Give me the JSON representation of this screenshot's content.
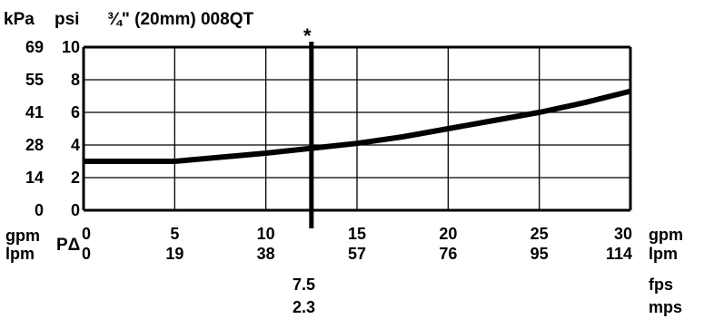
{
  "chart_data": {
    "type": "line",
    "title": "¾\" (20mm) 008QT",
    "x": [
      0,
      2.5,
      5,
      7.5,
      10,
      12.5,
      15,
      17.5,
      20,
      22.5,
      25,
      27.5,
      30
    ],
    "series": [
      {
        "values": [
          3.0,
          3.0,
          3.0,
          3.25,
          3.5,
          3.8,
          4.1,
          4.5,
          5.0,
          5.5,
          6.0,
          6.6,
          7.3
        ]
      }
    ],
    "xlim": [
      0,
      30
    ],
    "ylim": [
      0,
      10
    ],
    "x_ticks": [
      "0",
      "5",
      "10",
      "15",
      "20",
      "25",
      "30"
    ],
    "x_ticks_secondary": [
      "0",
      "19",
      "38",
      "57",
      "76",
      "95",
      "114"
    ],
    "x_unit_primary": "gpm",
    "x_unit_secondary": "lpm",
    "y_ticks_psi": [
      "10",
      "8",
      "6",
      "4",
      "2",
      "0"
    ],
    "y_ticks_kpa": [
      "69",
      "55",
      "41",
      "28",
      "14",
      "0"
    ],
    "y_unit_psi": "psi",
    "y_unit_kpa": "kPa",
    "marker": {
      "x": 12.5,
      "symbol": "*",
      "fps": "7.5",
      "mps": "2.3",
      "fps_unit": "fps",
      "mps_unit": "mps"
    },
    "left_label_gpm": "gpm",
    "left_label_lpm": "lpm",
    "dp_label": "PΔ",
    "grid": true
  }
}
